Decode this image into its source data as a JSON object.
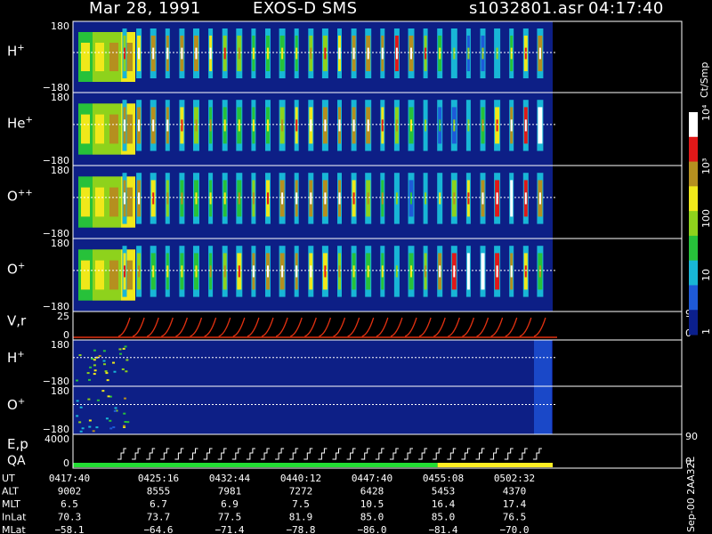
{
  "header": {
    "date": "Mar 28, 1991",
    "instrument": "EXOS-D SMS",
    "file": "s1032801.asr",
    "time": "04:17:40"
  },
  "colorbar": {
    "label": "Ct/Smp",
    "tick_labels": [
      "1",
      "10",
      "100",
      "10³",
      "10⁴"
    ]
  },
  "chart_data": {
    "type": "heatmap",
    "title": "Mar 28, 1991   EXOS-D SMS",
    "panels": [
      {
        "label": "H+",
        "label_base": "H",
        "label_sup": "+",
        "kind": "spectrogram",
        "y_labels": [
          "180",
          "−180"
        ],
        "ylim": [
          -180,
          180
        ]
      },
      {
        "label": "He+",
        "label_base": "He",
        "label_sup": "+",
        "kind": "spectrogram",
        "y_labels": [
          "180",
          "−180"
        ],
        "ylim": [
          -180,
          180
        ]
      },
      {
        "label": "O++",
        "label_base": "O",
        "label_sup": "++",
        "kind": "spectrogram",
        "y_labels": [
          "180",
          "−180"
        ],
        "ylim": [
          -180,
          180
        ]
      },
      {
        "label": "O+",
        "label_base": "O",
        "label_sup": "+",
        "kind": "spectrogram",
        "y_labels": [
          "180",
          "−180"
        ],
        "ylim": [
          -180,
          180
        ]
      },
      {
        "label": "V,r",
        "label_base": "V,r",
        "label_sup": "",
        "kind": "sawtooth",
        "y_labels": [
          "25",
          "0"
        ],
        "right_labels": [
          "90",
          "0"
        ],
        "ylim": [
          0,
          25
        ]
      },
      {
        "label": "H+",
        "label_base": "H",
        "label_sup": "+",
        "kind": "sparse",
        "y_labels": [
          "180",
          "−180"
        ],
        "ylim": [
          -180,
          180
        ]
      },
      {
        "label": "O+",
        "label_base": "O",
        "label_sup": "+",
        "kind": "sparse",
        "y_labels": [
          "180",
          "−180"
        ],
        "ylim": [
          -180,
          180
        ]
      },
      {
        "label": "E,p",
        "label_base": "E,p",
        "label_sup": "",
        "label2": "QA",
        "kind": "steps",
        "y_labels": [
          "4000",
          "0"
        ],
        "right_labels": [
          "90",
          "0"
        ],
        "ylim": [
          0,
          4000
        ]
      }
    ],
    "qa_bar": {
      "colors": [
        "#22dd33",
        "#ffee22"
      ],
      "switch_fraction": 0.76
    },
    "side_text": "Sep-00  2AA32L",
    "ephemeris": {
      "rows": [
        {
          "name": "UT",
          "values": [
            "0417:40",
            "0425:16",
            "0432:44",
            "0440:12",
            "0447:40",
            "0455:08",
            "0502:32"
          ]
        },
        {
          "name": "ALT",
          "values": [
            "9002",
            "8555",
            "7981",
            "7272",
            "6428",
            "5453",
            "4370"
          ]
        },
        {
          "name": "MLT",
          "values": [
            "6.5",
            "6.7",
            "6.9",
            "7.5",
            "10.5",
            "16.4",
            "17.4"
          ]
        },
        {
          "name": "InLat",
          "values": [
            "70.3",
            "73.7",
            "77.5",
            "81.9",
            "85.0",
            "85.0",
            "76.5"
          ]
        },
        {
          "name": "MLat",
          "values": [
            "−58.1",
            "−64.6",
            "−71.4",
            "−78.8",
            "−86.0",
            "−81.4",
            "−70.0"
          ]
        }
      ]
    }
  }
}
